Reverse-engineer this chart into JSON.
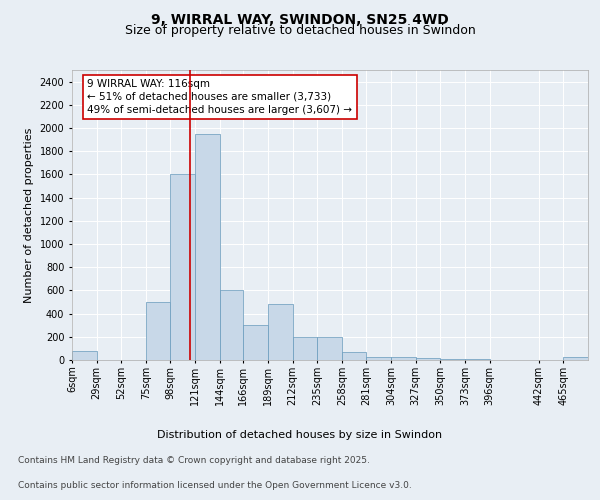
{
  "title": "9, WIRRAL WAY, SWINDON, SN25 4WD",
  "subtitle": "Size of property relative to detached houses in Swindon",
  "xlabel": "Distribution of detached houses by size in Swindon",
  "ylabel": "Number of detached properties",
  "bin_labels": [
    "6sqm",
    "29sqm",
    "52sqm",
    "75sqm",
    "98sqm",
    "121sqm",
    "144sqm",
    "166sqm",
    "189sqm",
    "212sqm",
    "235sqm",
    "258sqm",
    "281sqm",
    "304sqm",
    "327sqm",
    "350sqm",
    "373sqm",
    "396sqm",
    "442sqm",
    "465sqm"
  ],
  "bin_edges": [
    6,
    29,
    52,
    75,
    98,
    121,
    144,
    166,
    189,
    212,
    235,
    258,
    281,
    304,
    327,
    350,
    373,
    396,
    442,
    465,
    488
  ],
  "bar_heights": [
    75,
    0,
    0,
    500,
    1600,
    1950,
    600,
    300,
    480,
    200,
    195,
    65,
    30,
    30,
    20,
    10,
    5,
    0,
    0,
    30
  ],
  "bar_color": "#c8d8e8",
  "bar_edgecolor": "#6699bb",
  "vline_x": 116,
  "vline_color": "#cc0000",
  "annotation_line1": "9 WIRRAL WAY: 116sqm",
  "annotation_line2": "← 51% of detached houses are smaller (3,733)",
  "annotation_line3": "49% of semi-detached houses are larger (3,607) →",
  "annotation_box_edgecolor": "#cc0000",
  "ylim": [
    0,
    2500
  ],
  "yticks": [
    0,
    200,
    400,
    600,
    800,
    1000,
    1200,
    1400,
    1600,
    1800,
    2000,
    2200,
    2400
  ],
  "bg_color": "#e8eef4",
  "plot_bg_color": "#e8eef4",
  "footer_line1": "Contains HM Land Registry data © Crown copyright and database right 2025.",
  "footer_line2": "Contains public sector information licensed under the Open Government Licence v3.0.",
  "title_fontsize": 10,
  "subtitle_fontsize": 9,
  "axis_label_fontsize": 8,
  "tick_fontsize": 7,
  "annotation_fontsize": 7.5,
  "footer_fontsize": 6.5
}
